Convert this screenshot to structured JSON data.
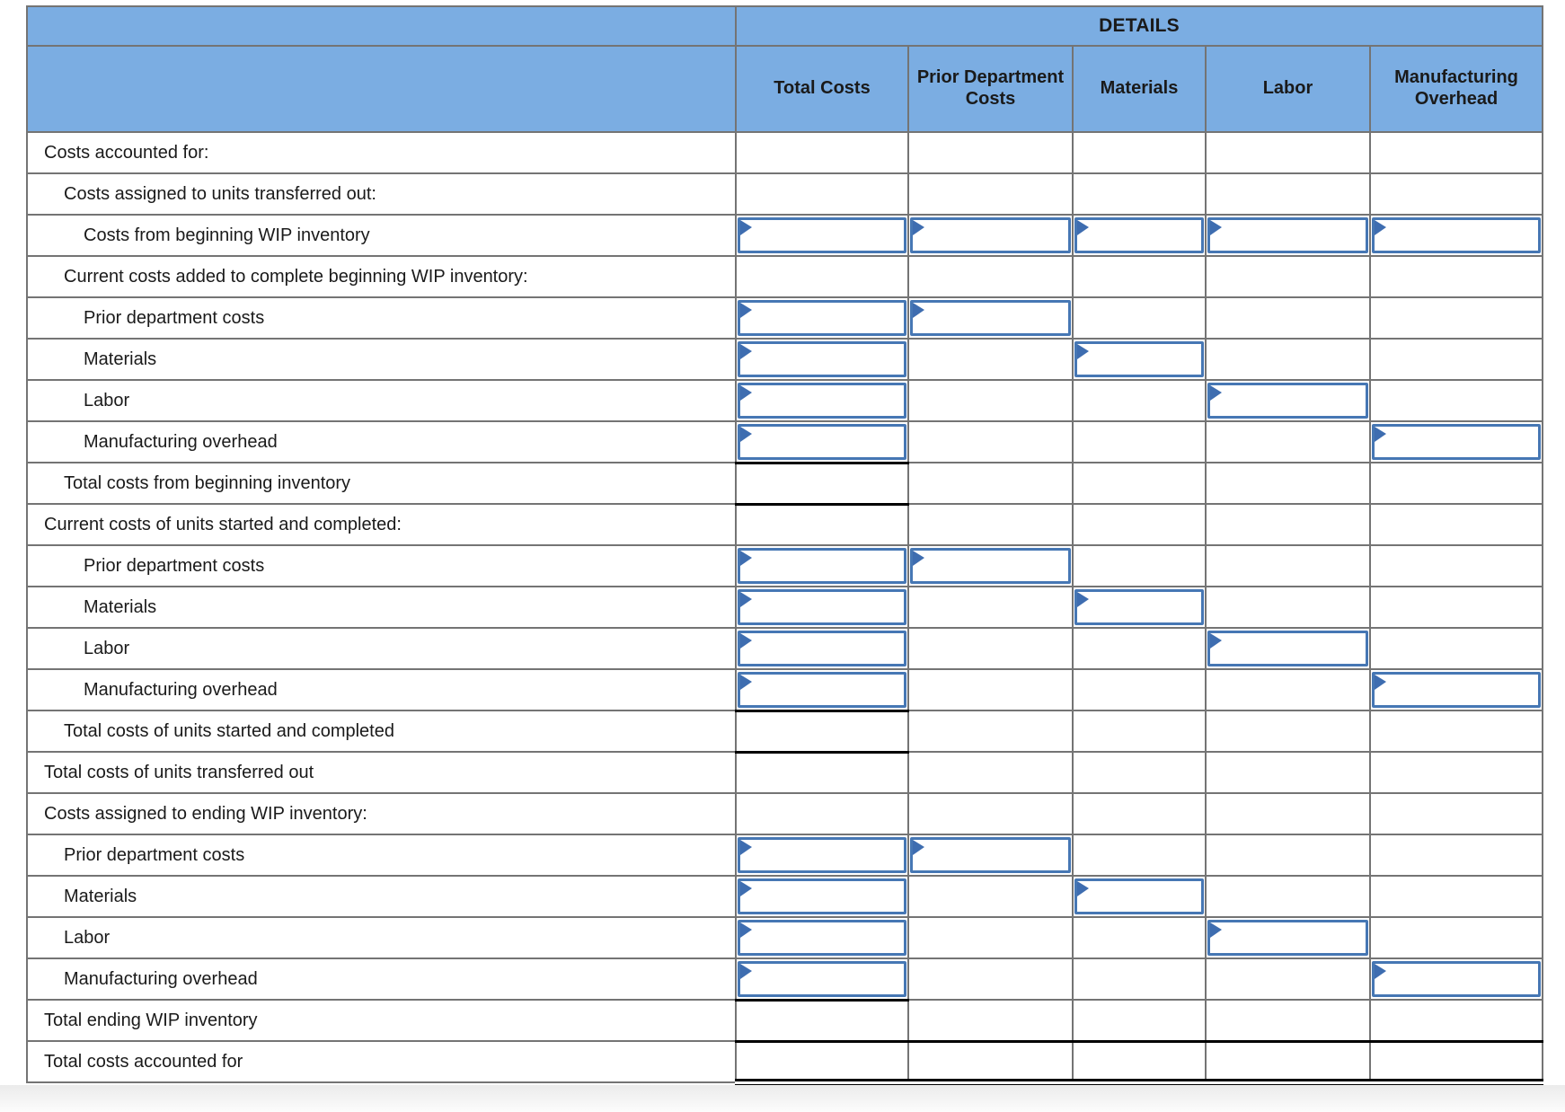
{
  "table": {
    "details_header": "DETAILS",
    "columns": [
      {
        "key": "total",
        "label": "Total Costs"
      },
      {
        "key": "prior",
        "label": "Prior Department Costs"
      },
      {
        "key": "materials",
        "label": "Materials"
      },
      {
        "key": "labor",
        "label": "Labor"
      },
      {
        "key": "overhead",
        "label": "Manufacturing Overhead"
      }
    ],
    "rows": [
      {
        "label": "Costs accounted for:",
        "indent": 0,
        "inputs": []
      },
      {
        "label": "Costs assigned to units transferred out:",
        "indent": 1,
        "inputs": []
      },
      {
        "label": "Costs from beginning WIP inventory",
        "indent": 2,
        "inputs": [
          "total",
          "prior",
          "materials",
          "labor",
          "overhead"
        ]
      },
      {
        "label": "Current costs added to complete beginning WIP inventory:",
        "indent": 1,
        "inputs": []
      },
      {
        "label": "Prior department costs",
        "indent": 2,
        "inputs": [
          "total",
          "prior"
        ]
      },
      {
        "label": "Materials",
        "indent": 2,
        "inputs": [
          "total",
          "materials"
        ]
      },
      {
        "label": "Labor",
        "indent": 2,
        "inputs": [
          "total",
          "labor"
        ]
      },
      {
        "label": "Manufacturing overhead",
        "indent": 2,
        "inputs": [
          "total",
          "overhead"
        ],
        "underline_total": true
      },
      {
        "label": "Total costs from beginning inventory",
        "indent": 1,
        "inputs": [],
        "underline_total": true
      },
      {
        "label": "Current costs of units started and completed:",
        "indent": 0,
        "inputs": []
      },
      {
        "label": "Prior department costs",
        "indent": 2,
        "inputs": [
          "total",
          "prior"
        ]
      },
      {
        "label": "Materials",
        "indent": 2,
        "inputs": [
          "total",
          "materials"
        ]
      },
      {
        "label": "Labor",
        "indent": 2,
        "inputs": [
          "total",
          "labor"
        ]
      },
      {
        "label": "Manufacturing overhead",
        "indent": 2,
        "inputs": [
          "total",
          "overhead"
        ],
        "underline_total": true
      },
      {
        "label": "Total costs of units started and completed",
        "indent": 1,
        "inputs": [],
        "underline_total": true
      },
      {
        "label": "Total costs of units transferred out",
        "indent": 0,
        "inputs": []
      },
      {
        "label": "Costs assigned to ending WIP inventory:",
        "indent": 0,
        "inputs": []
      },
      {
        "label": "Prior department costs",
        "indent": 1,
        "inputs": [
          "total",
          "prior"
        ]
      },
      {
        "label": "Materials",
        "indent": 1,
        "inputs": [
          "total",
          "materials"
        ]
      },
      {
        "label": "Labor",
        "indent": 1,
        "inputs": [
          "total",
          "labor"
        ]
      },
      {
        "label": "Manufacturing overhead",
        "indent": 1,
        "inputs": [
          "total",
          "overhead"
        ],
        "underline_total": true
      },
      {
        "label": "Total ending WIP inventory",
        "indent": 0,
        "inputs": [],
        "underline_all": "single"
      },
      {
        "label": "Total costs accounted for",
        "indent": 0,
        "inputs": [],
        "underline_all": "double"
      }
    ],
    "input_cells_empty_value": ""
  },
  "colors": {
    "header_blue": "#7BADE2",
    "grid_line": "#747474",
    "input_border": "#4677B4",
    "input_marker": "#3E6DB0",
    "underline_black": "#000000",
    "page_background": "#FFFFFF"
  },
  "icons": {
    "input_marker": "answer-marker-triangle"
  }
}
